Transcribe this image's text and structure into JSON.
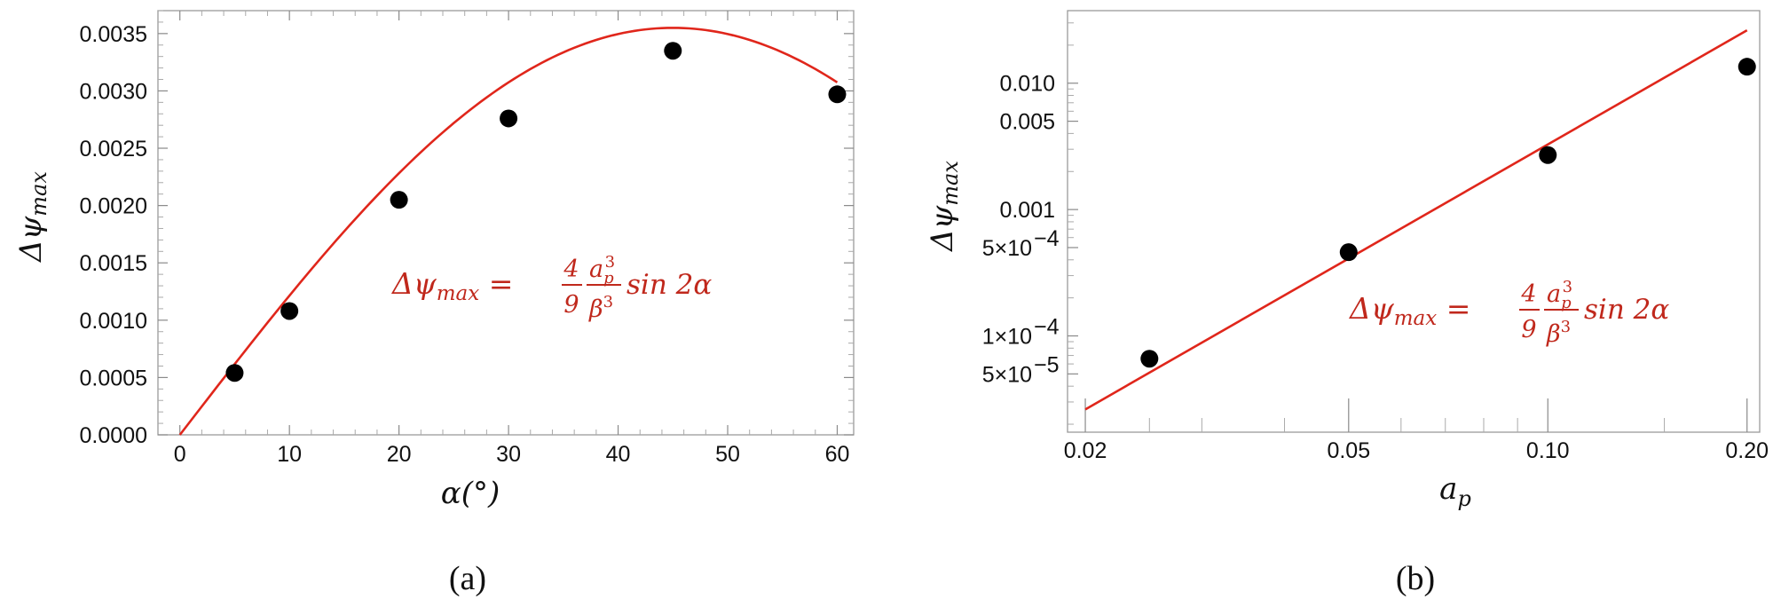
{
  "colors": {
    "curve": "#e0261b",
    "points": "#000000",
    "formula": "#c0281c",
    "frame": "#9a9a9a"
  },
  "chart_data": [
    {
      "type": "scatter",
      "panel_label": "(a)",
      "xlabel": "α(°)",
      "ylabel_main": "Δψ",
      "ylabel_sub": "max",
      "xlim": [
        -2,
        61.5
      ],
      "ylim": [
        0,
        0.0037
      ],
      "xticks": [
        0,
        10,
        20,
        30,
        40,
        50,
        60
      ],
      "xtick_labels": [
        "0",
        "10",
        "20",
        "30",
        "40",
        "50",
        "60"
      ],
      "yticks": [
        0,
        0.0005,
        0.001,
        0.0015,
        0.002,
        0.0025,
        0.003,
        0.0035
      ],
      "ytick_labels": [
        "0.0000",
        "0.0005",
        "0.0010",
        "0.0015",
        "0.0020",
        "0.0025",
        "0.0030",
        "0.0035"
      ],
      "series": [
        {
          "kind": "points",
          "x": [
            5,
            10,
            20,
            30,
            45,
            60
          ],
          "y": [
            0.00054,
            0.00108,
            0.00205,
            0.00276,
            0.00335,
            0.00297
          ]
        },
        {
          "kind": "curve",
          "model": "A*sin(2*alpha)",
          "A": 0.00355,
          "x_range": [
            0,
            60
          ]
        }
      ],
      "annotation": {
        "lhs": "Δψ",
        "lhs_sub": "max",
        "coef_num": "4",
        "coef_den": "9",
        "frac_num": "a",
        "frac_num_sub": "p",
        "frac_num_sup": "3",
        "frac_den": "β",
        "frac_den_sup": "3",
        "tail": "sin 2α"
      }
    },
    {
      "type": "scatter",
      "scale": "log-log",
      "panel_label": "(b)",
      "xlabel_main": "a",
      "xlabel_sub": "p",
      "ylabel_main": "Δψ",
      "ylabel_sub": "max",
      "xlim": [
        0.0188,
        0.209
      ],
      "ylim": [
        1.73e-05,
        0.0375
      ],
      "xticks": [
        0.02,
        0.05,
        0.1,
        0.2
      ],
      "xtick_labels": [
        "0.02",
        "0.05",
        "0.10",
        "0.20"
      ],
      "yticks": [
        5e-05,
        0.0001,
        0.0005,
        0.001,
        0.005,
        0.01
      ],
      "ytick_labels": [
        "5×10",
        "1×10",
        "5×10",
        "0.001",
        "0.005",
        "0.010"
      ],
      "ytick_exponents": [
        "−5",
        "−4",
        "−4",
        "",
        "",
        ""
      ],
      "series": [
        {
          "kind": "points",
          "x": [
            0.025,
            0.05,
            0.1,
            0.2
          ],
          "y": [
            6.6e-05,
            0.00046,
            0.0027,
            0.0135
          ]
        },
        {
          "kind": "line",
          "x": [
            0.02,
            0.2
          ],
          "y": [
            2.62e-05,
            0.0262
          ]
        }
      ],
      "annotation": {
        "lhs": "Δψ",
        "lhs_sub": "max",
        "coef_num": "4",
        "coef_den": "9",
        "frac_num": "a",
        "frac_num_sub": "p",
        "frac_num_sup": "3",
        "frac_den": "β",
        "frac_den_sup": "3",
        "tail": "sin 2α"
      }
    }
  ]
}
